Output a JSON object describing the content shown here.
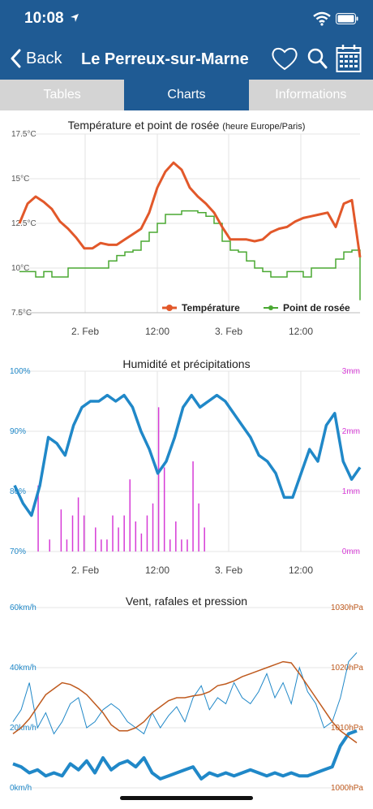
{
  "status": {
    "time": "10:08"
  },
  "nav": {
    "back_label": "Back",
    "title": "Le Perreux-sur-Marne"
  },
  "tabs": [
    {
      "label": "Tables",
      "active": false
    },
    {
      "label": "Charts",
      "active": true
    },
    {
      "label": "Informations",
      "active": false
    }
  ],
  "icons": [
    "chevron-left-icon",
    "heart-icon",
    "search-icon",
    "calendar-icon",
    "wifi-icon",
    "battery-icon",
    "location-arrow-icon"
  ],
  "colors": {
    "nav": "#1f5b94",
    "temperature": "#e2582a",
    "dewpoint": "#4aa832",
    "humidity": "#2088c8",
    "precip": "#d63bd6",
    "pressure": "#bf5a1e"
  },
  "chart_data": [
    {
      "type": "line",
      "title": "Température et point de rosée",
      "subtitle": "(heure Europe/Paris)",
      "y_ticks": [
        "17.5°C",
        "15°C",
        "12.5°C",
        "10°C",
        "7.5°C"
      ],
      "ylim": [
        7.5,
        17.5
      ],
      "x_ticks": [
        "2. Feb",
        "12:00",
        "3. Feb",
        "12:00"
      ],
      "x": [
        0,
        1,
        2,
        3,
        4,
        5,
        6,
        7,
        8,
        9,
        10,
        11,
        12,
        13,
        14,
        15,
        16,
        17,
        18,
        19,
        20,
        21,
        22,
        23,
        24,
        25,
        26,
        27,
        28,
        29,
        30,
        31,
        32,
        33,
        34,
        35,
        36,
        37,
        38,
        39,
        40,
        41,
        42
      ],
      "series": [
        {
          "name": "Température",
          "values": [
            12.5,
            13.6,
            14.0,
            13.7,
            13.3,
            12.6,
            12.2,
            11.7,
            11.1,
            11.1,
            11.4,
            11.3,
            11.3,
            11.6,
            11.9,
            12.2,
            13.1,
            14.5,
            15.4,
            15.9,
            15.5,
            14.5,
            14.0,
            13.6,
            13.1,
            12.3,
            11.6,
            11.6,
            11.6,
            11.5,
            11.6,
            12.0,
            12.2,
            12.3,
            12.6,
            12.8,
            12.9,
            13.0,
            13.1,
            12.3,
            13.6,
            13.8,
            10.6
          ]
        },
        {
          "name": "Point de rosée",
          "values": [
            9.8,
            9.8,
            9.5,
            9.8,
            9.5,
            9.5,
            10.0,
            10.0,
            10.0,
            10.0,
            10.0,
            10.4,
            10.7,
            10.9,
            11.0,
            11.5,
            12.0,
            12.5,
            13.0,
            13.0,
            13.2,
            13.2,
            13.1,
            12.9,
            12.5,
            11.5,
            11.0,
            10.9,
            10.4,
            10.0,
            9.8,
            9.5,
            9.5,
            9.8,
            9.8,
            9.5,
            10.0,
            10.0,
            10.0,
            10.5,
            10.9,
            11.0,
            8.2
          ]
        }
      ],
      "legend": "bottom-right"
    },
    {
      "type": "line",
      "title": "Humidité et précipitations",
      "y_ticks_left": [
        "100%",
        "90%",
        "80%",
        "70%"
      ],
      "y_ticks_right": [
        "3mm",
        "2mm",
        "1mm",
        "0mm"
      ],
      "ylim_left": [
        70,
        100
      ],
      "ylim_right": [
        0,
        3
      ],
      "x_ticks": [
        "2. Feb",
        "12:00",
        "3. Feb",
        "12:00"
      ],
      "series": [
        {
          "name": "Humidité",
          "values": [
            81,
            78,
            76,
            81,
            89,
            88,
            86,
            91,
            94,
            95,
            95,
            96,
            95,
            96,
            94,
            90,
            87,
            83,
            85,
            89,
            94,
            96,
            94,
            95,
            96,
            95,
            93,
            91,
            89,
            86,
            85,
            83,
            79,
            79,
            83,
            87,
            85,
            91,
            93,
            85,
            82,
            84
          ]
        },
        {
          "name": "Précipitations",
          "values": [
            0,
            1.1,
            0,
            0.2,
            0,
            0.7,
            0.2,
            0.6,
            0.9,
            0.6,
            0,
            0.4,
            0.2,
            0.2,
            0.6,
            0.4,
            0.6,
            1.2,
            0.5,
            0.3,
            0.6,
            0.8,
            2.4,
            1.4,
            0.2,
            0.5,
            0.2,
            0.2,
            1.5,
            0.8,
            0.4,
            0,
            0,
            0,
            0,
            0,
            0,
            0,
            0,
            0,
            0,
            0
          ]
        }
      ]
    },
    {
      "type": "line",
      "title": "Vent, rafales et pression",
      "y_ticks_left": [
        "60km/h",
        "40km/h",
        "20km/h",
        "0km/h"
      ],
      "y_ticks_right": [
        "1030hPa",
        "1020hPa",
        "1010hPa",
        "1000hPa"
      ],
      "ylim_left": [
        0,
        60
      ],
      "ylim_right": [
        1000,
        1030
      ],
      "x_ticks": [
        "2. Feb",
        "12:00",
        "3. Feb",
        "12:00"
      ],
      "series": [
        {
          "name": "Vent",
          "values": [
            8,
            7,
            5,
            6,
            4,
            5,
            4,
            8,
            6,
            9,
            5,
            10,
            6,
            8,
            9,
            7,
            10,
            5,
            3,
            4,
            5,
            6,
            7,
            3,
            5,
            4,
            5,
            4,
            5,
            6,
            5,
            4,
            5,
            4,
            5,
            4,
            4,
            5,
            6,
            7,
            14,
            18,
            19
          ]
        },
        {
          "name": "Rafales",
          "values": [
            22,
            26,
            35,
            20,
            25,
            18,
            22,
            28,
            30,
            20,
            22,
            26,
            28,
            26,
            22,
            20,
            18,
            25,
            20,
            24,
            27,
            22,
            30,
            34,
            26,
            30,
            28,
            35,
            30,
            28,
            32,
            38,
            30,
            35,
            28,
            40,
            32,
            28,
            20,
            22,
            30,
            42,
            45
          ]
        },
        {
          "name": "Pression",
          "values": [
            1009.0,
            1010.0,
            1011.5,
            1013.5,
            1015.5,
            1016.5,
            1017.5,
            1017.2,
            1016.5,
            1015.5,
            1014.0,
            1012.5,
            1010.5,
            1009.5,
            1009.5,
            1010.0,
            1011.0,
            1012.5,
            1013.5,
            1014.5,
            1015.0,
            1015.0,
            1015.3,
            1015.5,
            1016.0,
            1017.0,
            1017.3,
            1017.8,
            1018.5,
            1019.0,
            1019.5,
            1020.0,
            1020.5,
            1021.0,
            1020.8,
            1019.0,
            1017.0,
            1015.0,
            1013.0,
            1011.0,
            1009.5,
            1008.5,
            1007.5
          ]
        }
      ]
    }
  ]
}
